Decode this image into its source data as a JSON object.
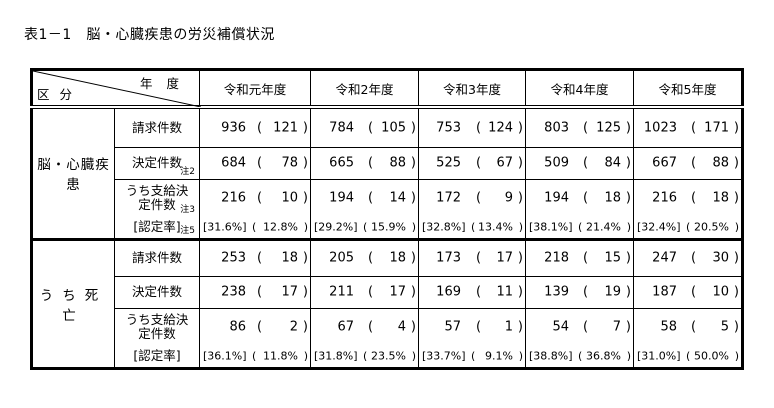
{
  "title": "表1－1　脳・心臓疾患の労災補償状況",
  "header": {
    "year_label": "年度",
    "category_label": "区分",
    "years": [
      "令和元年度",
      "令和2年度",
      "令和3年度",
      "令和4年度",
      "令和5年度"
    ]
  },
  "sections": [
    {
      "name": "脳・心臓疾患",
      "rows": [
        {
          "label": "請求件数",
          "note": "",
          "values": [
            [
              "936",
              "121"
            ],
            [
              "784",
              "105"
            ],
            [
              "753",
              "124"
            ],
            [
              "803",
              "125"
            ],
            [
              "1023",
              "171"
            ]
          ]
        },
        {
          "label": "決定件数",
          "note": "注2",
          "values": [
            [
              "684",
              "78"
            ],
            [
              "665",
              "88"
            ],
            [
              "525",
              "67"
            ],
            [
              "509",
              "84"
            ],
            [
              "667",
              "88"
            ]
          ]
        },
        {
          "label": "うち支給決定件数",
          "note": "注3",
          "values": [
            [
              "216",
              "10"
            ],
            [
              "194",
              "14"
            ],
            [
              "172",
              "9"
            ],
            [
              "194",
              "18"
            ],
            [
              "216",
              "18"
            ]
          ]
        },
        {
          "label": "[認定率]",
          "note": "注5",
          "values": [
            [
              "[31.6%]",
              "12.8%"
            ],
            [
              "[29.2%]",
              "15.9%"
            ],
            [
              "[32.8%]",
              "13.4%"
            ],
            [
              "[38.1%]",
              "21.4%"
            ],
            [
              "[32.4%]",
              "20.5%"
            ]
          ]
        }
      ]
    },
    {
      "name": "うち死亡",
      "rows": [
        {
          "label": "請求件数",
          "note": "",
          "values": [
            [
              "253",
              "18"
            ],
            [
              "205",
              "18"
            ],
            [
              "173",
              "17"
            ],
            [
              "218",
              "15"
            ],
            [
              "247",
              "30"
            ]
          ]
        },
        {
          "label": "決定件数",
          "note": "",
          "values": [
            [
              "238",
              "17"
            ],
            [
              "211",
              "17"
            ],
            [
              "169",
              "11"
            ],
            [
              "139",
              "19"
            ],
            [
              "187",
              "10"
            ]
          ]
        },
        {
          "label": "うち支給決定件数",
          "note": "",
          "values": [
            [
              "86",
              "2"
            ],
            [
              "67",
              "4"
            ],
            [
              "57",
              "1"
            ],
            [
              "54",
              "7"
            ],
            [
              "58",
              "5"
            ]
          ]
        },
        {
          "label": "[認定率]",
          "note": "",
          "values": [
            [
              "[36.1%]",
              "11.8%"
            ],
            [
              "[31.8%]",
              "23.5%"
            ],
            [
              "[33.7%]",
              "9.1%"
            ],
            [
              "[38.8%]",
              "36.8%"
            ],
            [
              "[31.0%]",
              "50.0%"
            ]
          ]
        }
      ]
    }
  ]
}
